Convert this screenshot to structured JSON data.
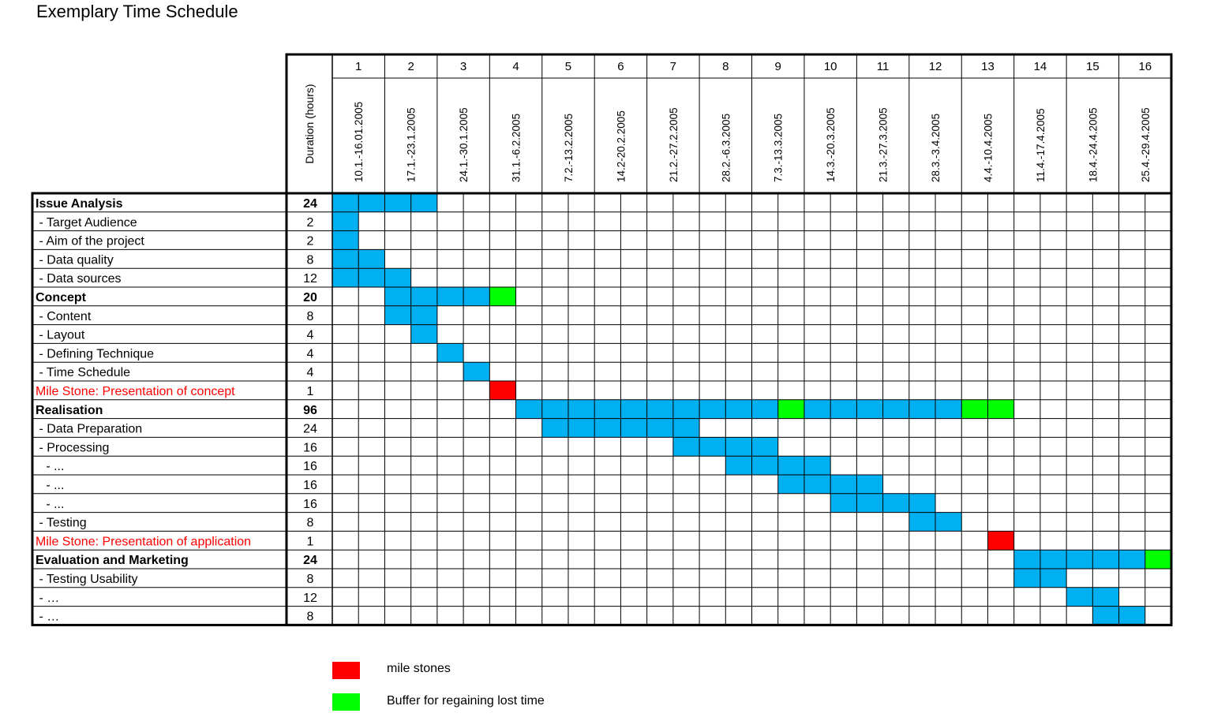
{
  "document": {
    "title": "Exemplary Time Schedule",
    "duration_header": "Duration (hours)"
  },
  "colors": {
    "task": "#00B0F0",
    "milestone": "#FF0000",
    "buffer": "#00FF00",
    "milestone_text": "#FF0000"
  },
  "weeks": [
    {
      "num": "1",
      "range": "10.1.-16.01.2005"
    },
    {
      "num": "2",
      "range": "17.1.-23.1.2005"
    },
    {
      "num": "3",
      "range": "24.1.-30.1.2005"
    },
    {
      "num": "4",
      "range": "31.1.-6.2.2005"
    },
    {
      "num": "5",
      "range": "7.2.-13.2.2005"
    },
    {
      "num": "6",
      "range": "14.2-20.2.2005"
    },
    {
      "num": "7",
      "range": "21.2.-27.2.2005"
    },
    {
      "num": "8",
      "range": "28.2.-6.3.2005"
    },
    {
      "num": "9",
      "range": "7.3.-13.3.2005"
    },
    {
      "num": "10",
      "range": "14.3.-20.3.2005"
    },
    {
      "num": "11",
      "range": "21.3.-27.3.2005"
    },
    {
      "num": "12",
      "range": "28.3.-3.4.2005"
    },
    {
      "num": "13",
      "range": "4.4.-10.4.2005"
    },
    {
      "num": "14",
      "range": "11.4.-17.4.2005"
    },
    {
      "num": "15",
      "range": "18.4.-24.4.2005"
    },
    {
      "num": "16",
      "range": "25.4.-29.4.2005"
    }
  ],
  "rows": [
    {
      "name": "Issue Analysis",
      "duration": "24",
      "style": "bold",
      "cells": [
        [
          1,
          4,
          "task"
        ]
      ]
    },
    {
      "name": " - Target Audience",
      "duration": "2",
      "style": "normal",
      "cells": [
        [
          1,
          1,
          "task"
        ]
      ]
    },
    {
      "name": " - Aim of the project",
      "duration": "2",
      "style": "normal",
      "cells": [
        [
          1,
          1,
          "task"
        ]
      ]
    },
    {
      "name": " - Data quality",
      "duration": "8",
      "style": "normal",
      "cells": [
        [
          1,
          2,
          "task"
        ]
      ]
    },
    {
      "name": " - Data sources",
      "duration": "12",
      "style": "normal",
      "cells": [
        [
          1,
          3,
          "task"
        ]
      ]
    },
    {
      "name": "Concept",
      "duration": "20",
      "style": "bold",
      "cells": [
        [
          3,
          6,
          "task"
        ],
        [
          7,
          7,
          "buffer"
        ]
      ]
    },
    {
      "name": " - Content",
      "duration": "8",
      "style": "normal",
      "cells": [
        [
          3,
          4,
          "task"
        ]
      ]
    },
    {
      "name": " - Layout",
      "duration": "4",
      "style": "normal",
      "cells": [
        [
          4,
          4,
          "task"
        ]
      ]
    },
    {
      "name": " - Defining Technique",
      "duration": "4",
      "style": "normal",
      "cells": [
        [
          5,
          5,
          "task"
        ]
      ]
    },
    {
      "name": " - Time Schedule",
      "duration": "4",
      "style": "normal",
      "cells": [
        [
          6,
          6,
          "task"
        ]
      ]
    },
    {
      "name": "Mile Stone: Presentation of concept",
      "duration": "1",
      "style": "milestone",
      "cells": [
        [
          7,
          7,
          "milestone"
        ]
      ]
    },
    {
      "name": "Realisation",
      "duration": "96",
      "style": "bold",
      "cells": [
        [
          8,
          17,
          "task"
        ],
        [
          18,
          18,
          "buffer"
        ],
        [
          19,
          24,
          "task"
        ],
        [
          25,
          26,
          "buffer"
        ]
      ]
    },
    {
      "name": " - Data Preparation",
      "duration": "24",
      "style": "normal",
      "cells": [
        [
          9,
          14,
          "task"
        ]
      ]
    },
    {
      "name": " - Processing",
      "duration": "16",
      "style": "normal",
      "cells": [
        [
          14,
          17,
          "task"
        ]
      ]
    },
    {
      "name": "   - ...",
      "duration": "16",
      "style": "normal",
      "cells": [
        [
          16,
          19,
          "task"
        ]
      ]
    },
    {
      "name": "   - ...",
      "duration": "16",
      "style": "normal",
      "cells": [
        [
          18,
          21,
          "task"
        ]
      ]
    },
    {
      "name": "   - ...",
      "duration": "16",
      "style": "normal",
      "cells": [
        [
          20,
          23,
          "task"
        ]
      ]
    },
    {
      "name": " - Testing",
      "duration": "8",
      "style": "normal",
      "cells": [
        [
          23,
          24,
          "task"
        ]
      ]
    },
    {
      "name": "Mile Stone: Presentation of application",
      "duration": "1",
      "style": "milestone",
      "cells": [
        [
          26,
          26,
          "milestone"
        ]
      ]
    },
    {
      "name": "Evaluation and Marketing",
      "duration": "24",
      "style": "bold",
      "cells": [
        [
          27,
          31,
          "task"
        ],
        [
          32,
          32,
          "buffer"
        ]
      ]
    },
    {
      "name": " - Testing Usability",
      "duration": "8",
      "style": "normal",
      "cells": [
        [
          27,
          28,
          "task"
        ]
      ]
    },
    {
      "name": " - …",
      "duration": "12",
      "style": "normal",
      "cells": [
        [
          29,
          30,
          "task"
        ]
      ]
    },
    {
      "name": " - …",
      "duration": "8",
      "style": "normal",
      "cells": [
        [
          30,
          31,
          "task"
        ]
      ]
    }
  ],
  "legend": {
    "milestone_label": "mile stones",
    "buffer_label": "Buffer for regaining lost time"
  }
}
